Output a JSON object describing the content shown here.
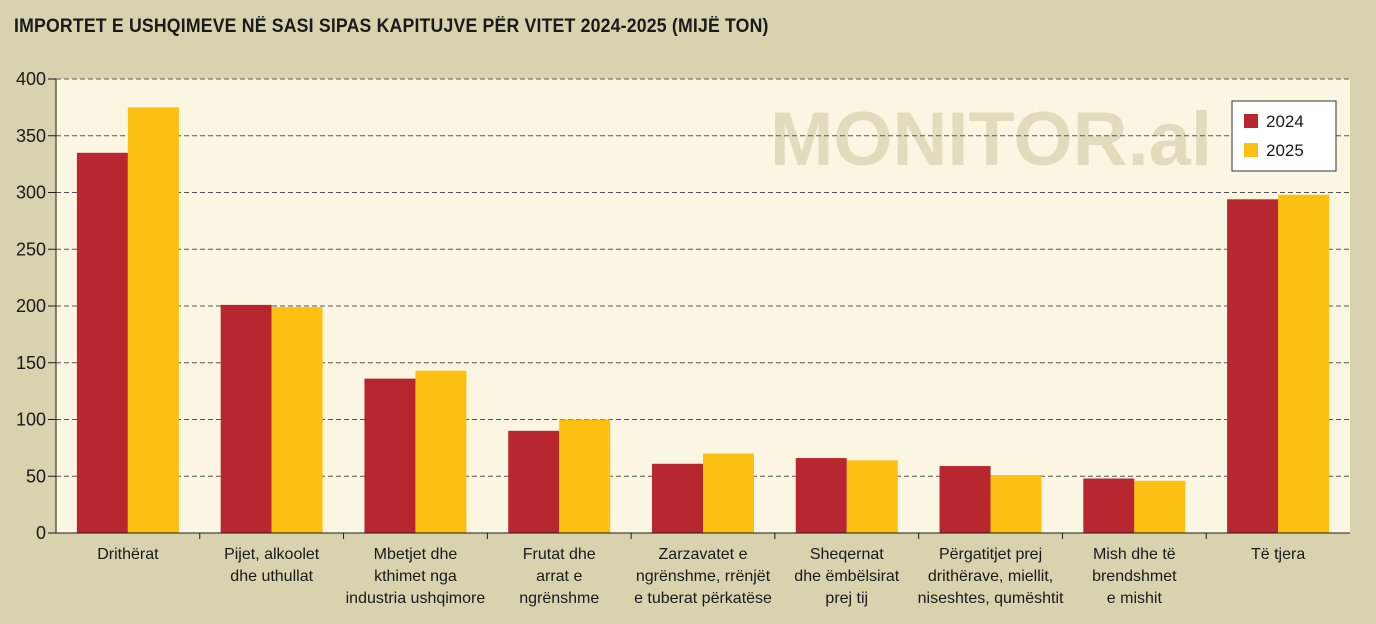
{
  "chart_data": {
    "type": "bar",
    "title": "IMPORTET E USHQIMEVE NË SASI SIPAS KAPITUJVE PËR VITET 2024-2025 (MIJË TON)",
    "watermark": "MONITOR.al",
    "categories": [
      [
        "Drithërat"
      ],
      [
        "Pijet, alkoolet",
        "dhe uthullat"
      ],
      [
        "Mbetjet dhe",
        "kthimet nga",
        "industria ushqimore"
      ],
      [
        "Frutat dhe",
        "arrat e",
        "ngrënshme"
      ],
      [
        "Zarzavatet e",
        "ngrënshme, rrënjët",
        "e tuberat përkatëse"
      ],
      [
        "Sheqernat",
        "dhe ëmbëlsirat",
        "prej tij"
      ],
      [
        "Përgatitjet prej",
        "drithërave, miellit,",
        "niseshtes, qumështit"
      ],
      [
        "Mish dhe të",
        "brendshmet",
        "e mishit"
      ],
      [
        "Të tjera"
      ]
    ],
    "series": [
      {
        "name": "2024",
        "color": "#b8262f",
        "values": [
          335,
          201,
          136,
          90,
          61,
          66,
          59,
          48,
          294
        ]
      },
      {
        "name": "2025",
        "color": "#fcc012",
        "values": [
          375,
          199,
          143,
          100,
          70,
          64,
          51,
          46,
          298
        ]
      }
    ],
    "ylim": [
      0,
      400
    ],
    "yticks": [
      0,
      50,
      100,
      150,
      200,
      250,
      300,
      350,
      400
    ],
    "grid": true,
    "legend_position": "top-right",
    "plot_background": "#fbf6e2"
  }
}
